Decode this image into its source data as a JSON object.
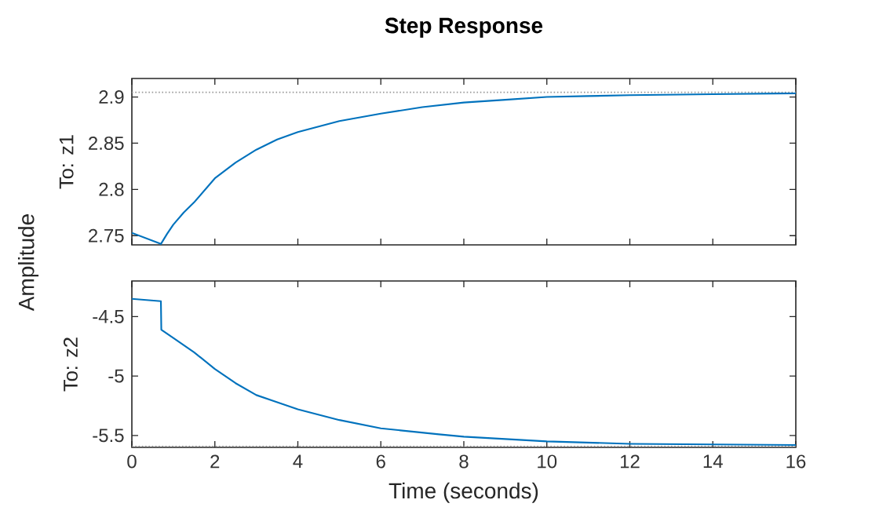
{
  "chart_data": [
    {
      "type": "line",
      "title": "Step Response",
      "ylabel": "To: z1",
      "annotations": [
        "Amplitude"
      ],
      "x": [
        0,
        0.35,
        0.7,
        0.85,
        1.0,
        1.25,
        1.5,
        2,
        2.5,
        3,
        3.5,
        4,
        5,
        6,
        7,
        8,
        9,
        10,
        11,
        12,
        14,
        16
      ],
      "series": [
        {
          "color": "#0072bd",
          "values": [
            2.753,
            2.747,
            2.741,
            2.752,
            2.762,
            2.775,
            2.786,
            2.812,
            2.829,
            2.843,
            2.854,
            2.862,
            2.874,
            2.882,
            2.889,
            2.894,
            2.897,
            2.9,
            2.901,
            2.902,
            2.903,
            2.904
          ]
        }
      ],
      "xlim": [
        0,
        16
      ],
      "ylim": [
        2.74,
        2.92
      ],
      "xticks": [
        0,
        2,
        4,
        6,
        8,
        10,
        12,
        14,
        16
      ],
      "yticks": [
        2.75,
        2.8,
        2.85,
        2.9
      ],
      "tick_labels": "y",
      "grid": false,
      "line_style": "solid",
      "ref_lines": [
        {
          "axis": "y",
          "value": 2.905,
          "color": "#999999",
          "line_style": "dotted"
        }
      ]
    },
    {
      "type": "line",
      "ylabel": "To: z2",
      "xlabel": "Time (seconds)",
      "x": [
        0,
        0.7,
        0.71,
        1.0,
        1.5,
        2,
        2.5,
        3,
        4,
        5,
        6,
        7.4,
        8,
        10,
        12,
        16
      ],
      "series": [
        {
          "color": "#0072bd",
          "values": [
            -4.35,
            -4.37,
            -4.61,
            -4.68,
            -4.8,
            -4.94,
            -5.06,
            -5.16,
            -5.28,
            -5.37,
            -5.44,
            -5.49,
            -5.51,
            -5.55,
            -5.57,
            -5.58
          ]
        }
      ],
      "xlim": [
        0,
        16
      ],
      "ylim": [
        -5.6,
        -4.2
      ],
      "xticks": [
        0,
        2,
        4,
        6,
        8,
        10,
        12,
        14,
        16
      ],
      "yticks": [
        -5.5,
        -5,
        -4.5
      ],
      "grid": false,
      "line_style": "solid",
      "ref_lines": [
        {
          "axis": "y",
          "value": -5.59,
          "color": "#999999",
          "line_style": "dotted"
        }
      ]
    }
  ]
}
